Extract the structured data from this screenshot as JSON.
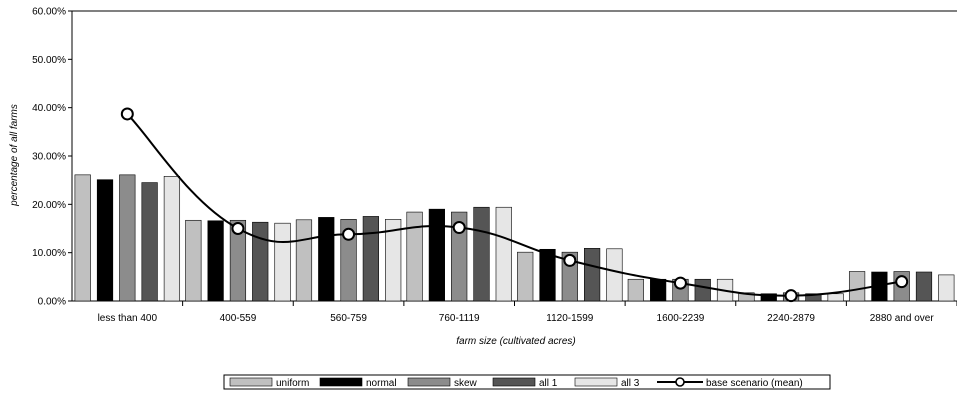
{
  "chart_data": {
    "type": "bar",
    "xlabel": "farm size (cultivated acres)",
    "ylabel": "percentage of all farms",
    "ylim": [
      0,
      0.6
    ],
    "yticks": [
      0,
      0.1,
      0.2,
      0.3,
      0.4,
      0.5,
      0.6
    ],
    "ytick_labels": [
      "0.00%",
      "10.00%",
      "20.00%",
      "30.00%",
      "40.00%",
      "50.00%",
      "60.00%"
    ],
    "categories": [
      "less than 400",
      "400-559",
      "560-759",
      "760-1119",
      "1120-1599",
      "1600-2239",
      "2240-2879",
      "2880 and over"
    ],
    "series": [
      {
        "name": "uniform",
        "kind": "bar",
        "color": "#c0c0c0",
        "values": [
          0.261,
          0.167,
          0.168,
          0.184,
          0.101,
          0.045,
          0.017,
          0.061
        ]
      },
      {
        "name": "normal",
        "kind": "bar",
        "color": "#000000",
        "values": [
          0.251,
          0.166,
          0.173,
          0.19,
          0.107,
          0.045,
          0.015,
          0.06
        ]
      },
      {
        "name": "skew",
        "kind": "bar",
        "color": "#8c8c8c",
        "values": [
          0.261,
          0.167,
          0.169,
          0.184,
          0.101,
          0.045,
          0.017,
          0.061
        ]
      },
      {
        "name": "all 1",
        "kind": "bar",
        "color": "#555555",
        "values": [
          0.245,
          0.163,
          0.175,
          0.194,
          0.109,
          0.045,
          0.015,
          0.06
        ]
      },
      {
        "name": "all 3",
        "kind": "bar",
        "color": "#e6e6e6",
        "values": [
          0.258,
          0.161,
          0.169,
          0.194,
          0.108,
          0.045,
          0.015,
          0.054
        ]
      },
      {
        "name": "base scenario (mean)",
        "kind": "line",
        "color": "#000000",
        "values": [
          0.387,
          0.15,
          0.138,
          0.152,
          0.084,
          0.037,
          0.011,
          0.04
        ]
      }
    ],
    "grid": false,
    "legend_position": "bottom"
  }
}
